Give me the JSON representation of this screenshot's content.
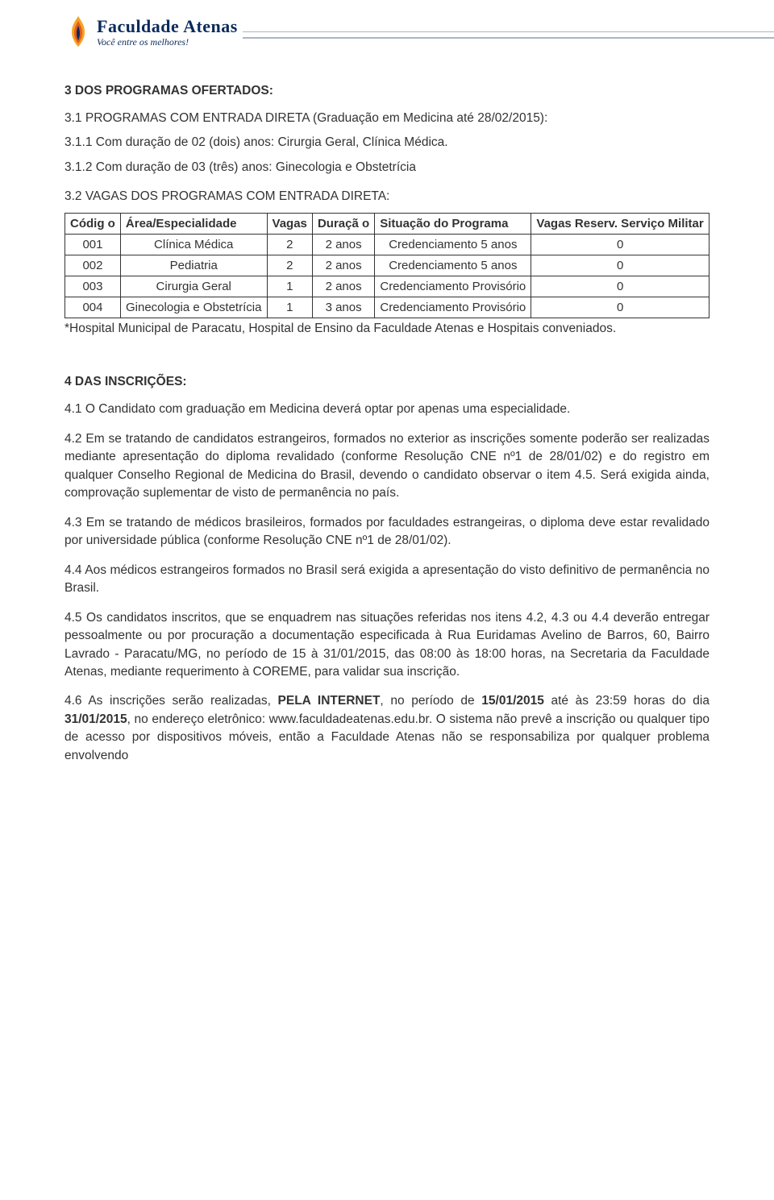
{
  "logo": {
    "title": "Faculdade Atenas",
    "subtitle": "Você entre os melhores!"
  },
  "sec3": {
    "title": "3 DOS PROGRAMAS OFERTADOS:",
    "p31": "3.1 PROGRAMAS COM ENTRADA DIRETA (Graduação em Medicina até 28/02/2015):",
    "p311": "3.1.1 Com duração de 02 (dois) anos: Cirurgia Geral, Clínica Médica.",
    "p312": "3.1.2 Com duração de 03 (três) anos: Ginecologia e Obstetrícia",
    "p32": "3.2 VAGAS DOS PROGRAMAS COM ENTRADA DIRETA:"
  },
  "table": {
    "headers": {
      "codigo": "Códig o",
      "area": "Área/Especialidade",
      "vagas": "Vagas",
      "duracao": "Duraçã o",
      "situacao": "Situação do Programa",
      "reserv": "Vagas Reserv. Serviço Militar"
    },
    "rows": [
      {
        "codigo": "001",
        "area": "Clínica Médica",
        "vagas": "2",
        "duracao": "2 anos",
        "situacao": "Credenciamento 5 anos",
        "reserv": "0"
      },
      {
        "codigo": "002",
        "area": "Pediatria",
        "vagas": "2",
        "duracao": "2 anos",
        "situacao": "Credenciamento 5 anos",
        "reserv": "0"
      },
      {
        "codigo": "003",
        "area": "Cirurgia Geral",
        "vagas": "1",
        "duracao": "2 anos",
        "situacao": "Credenciamento Provisório",
        "reserv": "0"
      },
      {
        "codigo": "004",
        "area": "Ginecologia e Obstetrícia",
        "vagas": "1",
        "duracao": "3 anos",
        "situacao": "Credenciamento Provisório",
        "reserv": "0"
      }
    ],
    "footnote": "*Hospital Municipal de Paracatu, Hospital de Ensino da Faculdade Atenas e Hospitais conveniados."
  },
  "sec4": {
    "title": "4 DAS INSCRIÇÕES:",
    "p41": "4.1 O Candidato com graduação em Medicina deverá optar por apenas uma especialidade.",
    "p42": "4.2 Em se tratando de candidatos estrangeiros, formados no exterior as inscrições somente poderão ser realizadas mediante apresentação do diploma revalidado (conforme Resolução CNE nº1 de 28/01/02) e do registro em qualquer Conselho Regional de Medicina do Brasil, devendo o candidato observar o item 4.5. Será exigida ainda, comprovação suplementar de visto de permanência no país.",
    "p43": "4.3 Em se tratando de médicos brasileiros, formados por faculdades estrangeiras, o diploma deve estar revalidado por universidade pública (conforme Resolução CNE nº1 de 28/01/02).",
    "p44": "4.4 Aos médicos estrangeiros formados no Brasil será exigida a apresentação do visto definitivo de permanência no Brasil.",
    "p45": "4.5 Os candidatos inscritos, que se enquadrem nas situações referidas nos itens 4.2, 4.3 ou 4.4 deverão entregar pessoalmente ou por procuração a documentação especificada à Rua Euridamas Avelino de Barros, 60, Bairro Lavrado - Paracatu/MG, no período de 15 à 31/01/2015, das 08:00 às 18:00 horas, na Secretaria da Faculdade Atenas, mediante requerimento à COREME, para validar sua inscrição.",
    "p46_pre": "4.6 As inscrições serão realizadas, ",
    "p46_b1": "PELA INTERNET",
    "p46_mid1": ", no período de ",
    "p46_b2": "15/01/2015",
    "p46_mid2": " até às 23:59 horas do dia ",
    "p46_b3": "31/01/2015",
    "p46_post": ", no endereço eletrônico: www.faculdadeatenas.edu.br. O sistema não prevê a inscrição ou qualquer tipo de acesso por dispositivos móveis, então a Faculdade Atenas não se responsabiliza por qualquer problema envolvendo"
  }
}
